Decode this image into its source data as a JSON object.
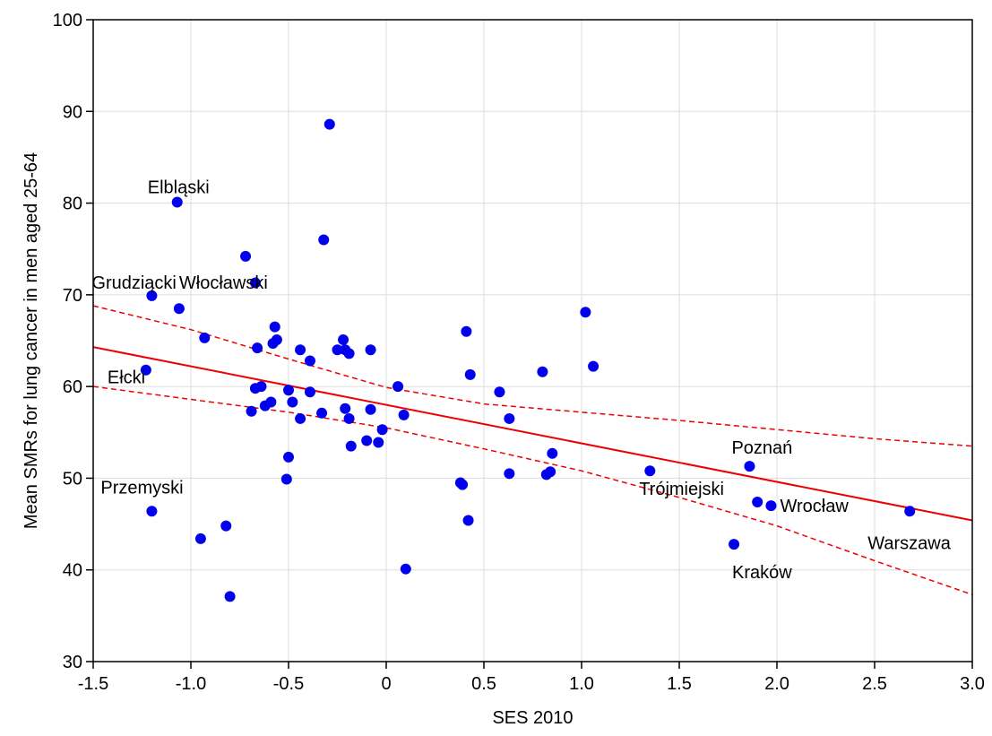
{
  "chart_data": {
    "type": "scatter",
    "xlabel": "SES 2010",
    "ylabel": "Mean SMRs for lung cancer in men aged 25-64",
    "xlim": [
      -1.5,
      3.0
    ],
    "ylim": [
      30,
      100
    ],
    "x_ticks": [
      "-1.5",
      "-1.0",
      "-0.5",
      "0",
      "0.5",
      "1.0",
      "1.5",
      "2.0",
      "2.5",
      "3.0"
    ],
    "x_tick_values": [
      -1.5,
      -1.0,
      -0.5,
      0,
      0.5,
      1.0,
      1.5,
      2.0,
      2.5,
      3.0
    ],
    "y_ticks": [
      "30",
      "40",
      "50",
      "60",
      "70",
      "80",
      "90",
      "100"
    ],
    "y_tick_values": [
      30,
      40,
      50,
      60,
      70,
      80,
      90,
      100
    ],
    "grid": true,
    "colors": {
      "points": "#0000ee",
      "fit": "#ee0000",
      "grid": "#dddddd"
    },
    "points": [
      {
        "x": -1.23,
        "y": 61.8
      },
      {
        "x": -1.2,
        "y": 69.9
      },
      {
        "x": -1.2,
        "y": 46.4
      },
      {
        "x": -1.07,
        "y": 80.1
      },
      {
        "x": -1.06,
        "y": 68.5
      },
      {
        "x": -0.93,
        "y": 65.3
      },
      {
        "x": -0.95,
        "y": 43.4
      },
      {
        "x": -0.82,
        "y": 44.8
      },
      {
        "x": -0.8,
        "y": 37.1
      },
      {
        "x": -0.72,
        "y": 74.2
      },
      {
        "x": -0.67,
        "y": 71.3
      },
      {
        "x": -0.66,
        "y": 64.2
      },
      {
        "x": -0.67,
        "y": 59.8
      },
      {
        "x": -0.64,
        "y": 60.0
      },
      {
        "x": -0.69,
        "y": 57.3
      },
      {
        "x": -0.62,
        "y": 57.9
      },
      {
        "x": -0.59,
        "y": 58.3
      },
      {
        "x": -0.58,
        "y": 64.7
      },
      {
        "x": -0.57,
        "y": 66.5
      },
      {
        "x": -0.56,
        "y": 65.1
      },
      {
        "x": -0.5,
        "y": 59.6
      },
      {
        "x": -0.48,
        "y": 58.3
      },
      {
        "x": -0.5,
        "y": 52.3
      },
      {
        "x": -0.51,
        "y": 49.9
      },
      {
        "x": -0.44,
        "y": 64.0
      },
      {
        "x": -0.44,
        "y": 56.5
      },
      {
        "x": -0.39,
        "y": 62.8
      },
      {
        "x": -0.39,
        "y": 59.4
      },
      {
        "x": -0.33,
        "y": 57.1
      },
      {
        "x": -0.32,
        "y": 76.0
      },
      {
        "x": -0.29,
        "y": 88.6
      },
      {
        "x": -0.25,
        "y": 64.0
      },
      {
        "x": -0.22,
        "y": 65.1
      },
      {
        "x": -0.21,
        "y": 64.0
      },
      {
        "x": -0.19,
        "y": 63.6
      },
      {
        "x": -0.21,
        "y": 57.6
      },
      {
        "x": -0.19,
        "y": 56.5
      },
      {
        "x": -0.18,
        "y": 53.5
      },
      {
        "x": -0.08,
        "y": 64.0
      },
      {
        "x": -0.08,
        "y": 57.5
      },
      {
        "x": -0.1,
        "y": 54.1
      },
      {
        "x": -0.04,
        "y": 53.9
      },
      {
        "x": -0.02,
        "y": 55.3
      },
      {
        "x": 0.06,
        "y": 60.0
      },
      {
        "x": 0.09,
        "y": 56.9
      },
      {
        "x": 0.1,
        "y": 40.1
      },
      {
        "x": 0.38,
        "y": 49.5
      },
      {
        "x": 0.39,
        "y": 49.3
      },
      {
        "x": 0.41,
        "y": 66.0
      },
      {
        "x": 0.43,
        "y": 61.3
      },
      {
        "x": 0.42,
        "y": 45.4
      },
      {
        "x": 0.58,
        "y": 59.4
      },
      {
        "x": 0.63,
        "y": 56.5
      },
      {
        "x": 0.63,
        "y": 50.5
      },
      {
        "x": 0.8,
        "y": 61.6
      },
      {
        "x": 0.82,
        "y": 50.4
      },
      {
        "x": 0.84,
        "y": 50.7
      },
      {
        "x": 0.85,
        "y": 52.7
      },
      {
        "x": 1.02,
        "y": 68.1
      },
      {
        "x": 1.06,
        "y": 62.2
      },
      {
        "x": 1.35,
        "y": 50.8
      },
      {
        "x": 1.78,
        "y": 42.8
      },
      {
        "x": 1.86,
        "y": 51.3
      },
      {
        "x": 1.9,
        "y": 47.4
      },
      {
        "x": 1.97,
        "y": 47.0
      },
      {
        "x": 2.68,
        "y": 46.4
      }
    ],
    "fit_line": {
      "x": [
        -1.5,
        3.0
      ],
      "y": [
        64.3,
        45.4
      ]
    },
    "confidence_upper": {
      "x": [
        -1.5,
        -1.0,
        -0.5,
        0,
        0.5,
        1.0,
        1.5,
        2.0,
        2.5,
        3.0
      ],
      "y": [
        68.8,
        66.2,
        63.0,
        59.9,
        58.1,
        57.2,
        56.3,
        55.3,
        54.3,
        53.5
      ]
    },
    "confidence_lower": {
      "x": [
        -1.5,
        -1.0,
        -0.5,
        0,
        0.5,
        1.0,
        1.5,
        2.0,
        2.5,
        3.0
      ],
      "y": [
        60.0,
        58.6,
        57.2,
        55.5,
        53.2,
        50.8,
        47.9,
        44.8,
        41.0,
        37.3
      ]
    },
    "annotations": [
      {
        "text": "Elbląski",
        "x": -1.07,
        "y": 80.1
      },
      {
        "text": "Grudziącki",
        "x": -1.2,
        "y": 69.9
      },
      {
        "text": "Włocławski",
        "x": -1.06,
        "y": 68.5
      },
      {
        "text": "Ełcki",
        "x": -1.23,
        "y": 61.8
      },
      {
        "text": "Przemyski",
        "x": -1.2,
        "y": 46.4
      },
      {
        "text": "Poznań",
        "x": 1.86,
        "y": 51.3
      },
      {
        "text": "Trójmiejski",
        "x": 1.9,
        "y": 47.4
      },
      {
        "text": "Wrocław",
        "x": 1.97,
        "y": 47.0
      },
      {
        "text": "Warszawa",
        "x": 2.68,
        "y": 46.4
      },
      {
        "text": "Kraków",
        "x": 1.78,
        "y": 42.8
      }
    ]
  }
}
